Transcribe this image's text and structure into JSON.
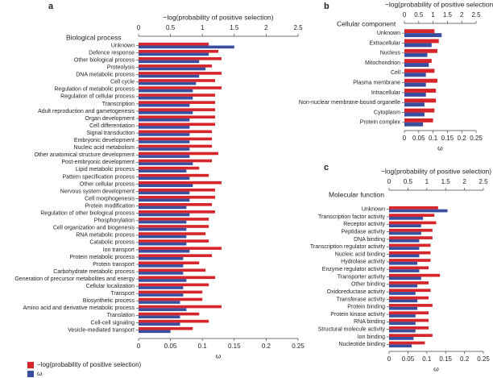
{
  "chart_data": [
    {
      "type": "hbar",
      "panel": "a",
      "title": "Biological process",
      "x2label": "−log(probability of positive selection)",
      "xlabel": "ω",
      "categories": [
        "Unknown",
        "Defence response",
        "Other biological process",
        "Proteolysis",
        "DNA metabolic process",
        "Cell cycle",
        "Regulation of metabolic process",
        "Regulation of cellular process",
        "Transcription",
        "Adult reproduction and gametogenesis",
        "Organ development",
        "Cell differentiation",
        "Signal transduction",
        "Embryonic development",
        "Nucleic acid metabolism",
        "Other anatomical structure development",
        "Post-embryonic development",
        "Lipid metabolic process",
        "Pattern specification process",
        "Other cellular process",
        "Nervous system development",
        "Cell morphogenesis",
        "Protein modification",
        "Regulation of other biological process",
        "Phosphorylation",
        "Cell organization and biogenesis",
        "RNA metabolic process",
        "Catabolic process",
        "Ion transport",
        "Protein metabolic process",
        "Protein transport",
        "Carbohydrate metabolic process",
        "Generation of precursor metabolites and energy",
        "Cellular localization",
        "Transport",
        "Biosynthetic process",
        "Amino acid and derivative metabolic process",
        "Translation",
        "Cell-cell signaling",
        "Vesicle-mediated transport"
      ],
      "series": [
        {
          "name": "−log(probability of positive selection)",
          "color": "#d7262b",
          "axis": "x2",
          "values": [
            1.1,
            1.25,
            1.3,
            1.15,
            1.3,
            1.2,
            1.3,
            1.2,
            1.2,
            1.2,
            1.2,
            1.2,
            1.15,
            1.15,
            1.15,
            1.25,
            1.15,
            0.95,
            1.1,
            1.3,
            1.2,
            1.2,
            1.15,
            1.2,
            1.1,
            1.1,
            1.05,
            1.1,
            1.3,
            1.15,
            0.95,
            1.05,
            1.2,
            1.1,
            1.0,
            1.0,
            1.3,
            0.95,
            1.1,
            0.85
          ]
        },
        {
          "name": "ω",
          "color": "#3a4ea0",
          "values": [
            0.15,
            0.11,
            0.095,
            0.105,
            0.095,
            0.09,
            0.085,
            0.085,
            0.08,
            0.085,
            0.08,
            0.08,
            0.08,
            0.08,
            0.08,
            0.08,
            0.085,
            0.075,
            0.08,
            0.085,
            0.08,
            0.08,
            0.075,
            0.08,
            0.075,
            0.075,
            0.075,
            0.075,
            0.08,
            0.07,
            0.07,
            0.07,
            0.075,
            0.07,
            0.07,
            0.065,
            0.075,
            0.065,
            0.065,
            0.05
          ]
        }
      ],
      "x2lim": [
        0,
        2.5
      ],
      "x2ticks": [
        0,
        0.5,
        1,
        1.5,
        2,
        2.5
      ],
      "xlim": [
        0,
        0.25
      ],
      "xticks": [
        0,
        0.05,
        0.1,
        0.15,
        0.2,
        0.25
      ],
      "legend": true
    },
    {
      "type": "hbar",
      "panel": "b",
      "title": "Cellular component",
      "x2label": "−log(probability of positive selection)",
      "xlabel": "ω",
      "categories": [
        "Unknown",
        "Extracellular",
        "Nucleus",
        "Mitochondrion",
        "Cell",
        "Plasma membrane",
        "Intracellular",
        "Non-nuclear membrane-bound organelle",
        "Cytoplasm",
        "Protein complex"
      ],
      "series": [
        {
          "color": "#d7262b",
          "axis": "x2",
          "values": [
            1.05,
            1.2,
            1.15,
            0.95,
            1.05,
            1.15,
            1.1,
            1.1,
            1.05,
            1.0
          ]
        },
        {
          "color": "#3a4ea0",
          "values": [
            0.13,
            0.095,
            0.08,
            0.085,
            0.075,
            0.075,
            0.075,
            0.07,
            0.07,
            0.065
          ]
        }
      ],
      "x2lim": [
        0,
        2.5
      ],
      "x2ticks": [
        0,
        0.5,
        1,
        1.5,
        2,
        2.5
      ],
      "xlim": [
        0,
        0.25
      ],
      "xticks": [
        0,
        0.05,
        0.1,
        0.15,
        0.2,
        0.25
      ],
      "legend": false
    },
    {
      "type": "hbar",
      "panel": "c",
      "title": "Molecular function",
      "x2label": "−log(probability of positive selection)",
      "xlabel": "ω",
      "categories": [
        "Unknown",
        "Transcription factor activity",
        "Receptor activity",
        "Peptidase activity",
        "DNA binding",
        "Transcription regulator activity",
        "Nucleic acid binding",
        "Hydrolase activity",
        "Enzyme regulator activity",
        "Transporter activity",
        "Other binding",
        "Oxidoreductase activity",
        "Transferase activity",
        "Protein binding",
        "Protein kinase activity",
        "RNA binding",
        "Structural molecule activity",
        "Ion binding",
        "Nucleotide binding"
      ],
      "series": [
        {
          "color": "#d7262b",
          "axis": "x2",
          "values": [
            1.3,
            1.2,
            1.25,
            1.15,
            1.15,
            1.1,
            1.1,
            1.1,
            1.05,
            1.35,
            1.05,
            1.1,
            1.05,
            1.15,
            1.05,
            1.05,
            1.05,
            1.15,
            0.95
          ]
        },
        {
          "color": "#3a4ea0",
          "values": [
            0.155,
            0.09,
            0.085,
            0.085,
            0.08,
            0.08,
            0.08,
            0.075,
            0.08,
            0.085,
            0.075,
            0.07,
            0.075,
            0.075,
            0.07,
            0.07,
            0.07,
            0.065,
            0.06
          ]
        }
      ],
      "x2lim": [
        0,
        2.5
      ],
      "x2ticks": [
        0,
        0.5,
        1,
        1.5,
        2,
        2.5
      ],
      "xlim": [
        0,
        0.25
      ],
      "xticks": [
        0,
        0.05,
        0.1,
        0.15,
        0.2,
        0.25
      ],
      "legend": false
    }
  ]
}
